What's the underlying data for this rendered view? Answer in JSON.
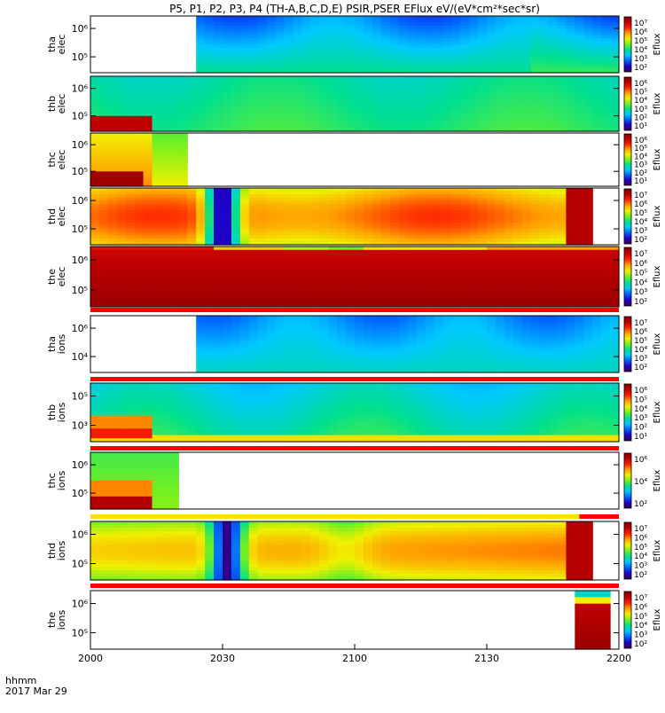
{
  "chart_data": {
    "type": "heatmap",
    "title": "P5, P1, P2, P3, P4 (TH-A,B,C,D,E) PSIR,PSER EFlux eV/(eV*cm²*sec*sr)",
    "xlabel_top": "hhmm",
    "xlabel_bottom": "2017 Mar 29",
    "xticks": [
      "2000",
      "2030",
      "2100",
      "2130",
      "2200"
    ],
    "xrange_minutes": [
      0,
      120
    ],
    "colorbar_label": "Eflux",
    "colormap": [
      "#3c0050",
      "#2000c8",
      "#0060ff",
      "#00c8ff",
      "#00e090",
      "#70f020",
      "#f0f000",
      "#ffa000",
      "#ff2000",
      "#c00000",
      "#800000"
    ],
    "panels": [
      {
        "label": [
          "tha",
          "elec"
        ],
        "yticks": [
          "10⁶",
          "10⁵"
        ],
        "cbar_ticks": [
          "10⁷",
          "10⁶",
          "10⁵",
          "10⁴",
          "10³",
          "10²"
        ],
        "data_start_min": 25,
        "profile": "tha_e",
        "colorbar": true
      },
      {
        "label": [
          "thb",
          "elec"
        ],
        "yticks": [
          "10⁶",
          "10⁵"
        ],
        "cbar_ticks": [
          "10⁶",
          "10⁵",
          "10⁴",
          "10³",
          "10²",
          "10¹"
        ],
        "data_start_min": 0,
        "profile": "thb_e",
        "colorbar": true
      },
      {
        "label": [
          "thc",
          "elec"
        ],
        "yticks": [
          "10⁶",
          "10⁵"
        ],
        "cbar_ticks": [
          "10⁶",
          "10⁵",
          "10⁴",
          "10³",
          "10²",
          "10¹"
        ],
        "data_start_min": 0,
        "data_end_min": 21,
        "profile": "thc_e",
        "colorbar": true
      },
      {
        "label": [
          "thd",
          "elec"
        ],
        "yticks": [
          "10⁶",
          "10⁵"
        ],
        "cbar_ticks": [
          "10⁷",
          "10⁶",
          "10⁵",
          "10⁴",
          "10³",
          "10²"
        ],
        "data_start_min": 0,
        "profile": "thd_e",
        "colorbar": true
      },
      {
        "label": [
          "the",
          "elec"
        ],
        "yticks": [
          "10⁶",
          "10⁵"
        ],
        "cbar_ticks": [
          "10⁷",
          "10⁶",
          "10⁵",
          "10⁴",
          "10³",
          "10²"
        ],
        "data_start_min": 0,
        "profile": "the_e",
        "colorbar": true
      },
      {
        "label": [
          "tha",
          "ions"
        ],
        "yticks": [
          "10⁶",
          "10⁴"
        ],
        "cbar_ticks": [
          "10⁷",
          "10⁶",
          "10⁵",
          "10⁴",
          "10³",
          "10²"
        ],
        "data_start_min": 25,
        "profile": "tha_i",
        "colorbar": true
      },
      {
        "label": [
          "thb",
          "ions"
        ],
        "yticks": [
          "10⁵",
          "10³"
        ],
        "cbar_ticks": [
          "10⁶",
          "10⁵",
          "10⁴",
          "10³",
          "10²",
          "10¹"
        ],
        "data_start_min": 0,
        "profile": "thb_i",
        "colorbar": true
      },
      {
        "label": [
          "thc",
          "ions"
        ],
        "yticks": [
          "10⁶",
          "10⁵"
        ],
        "cbar_ticks": [
          "10⁶",
          "10⁴",
          "10²"
        ],
        "data_start_min": 0,
        "data_end_min": 19,
        "profile": "thc_i",
        "colorbar": true
      },
      {
        "label": [
          "thd",
          "ions"
        ],
        "yticks": [
          "10⁶",
          "10⁵"
        ],
        "cbar_ticks": [
          "10⁷",
          "10⁶",
          "10⁵",
          "10⁴",
          "10³",
          "10²"
        ],
        "data_start_min": 0,
        "profile": "thd_i",
        "colorbar": true
      },
      {
        "label": [
          "the",
          "ions"
        ],
        "yticks": [
          "10⁶",
          "10⁵"
        ],
        "cbar_ticks": [
          "10⁷",
          "10⁶",
          "10⁵",
          "10⁴",
          "10³",
          "10²"
        ],
        "data_start_min": 111,
        "profile": "the_i",
        "colorbar": true
      }
    ],
    "flag_bars": [
      {
        "after_panel": 4,
        "colors": [
          "#ff0000"
        ],
        "split_min": null
      },
      {
        "after_panel": 5,
        "colors": [
          "#ff0000"
        ],
        "split_min": null
      },
      {
        "after_panel": 6,
        "colors": [
          "#ff0000"
        ],
        "split_min": null
      },
      {
        "after_panel": 7,
        "colors": [
          "#ffe000",
          "#ff0000"
        ],
        "split_min": 111
      },
      {
        "after_panel": 8,
        "colors": [
          "#ff0000"
        ],
        "split_min": null
      }
    ]
  }
}
